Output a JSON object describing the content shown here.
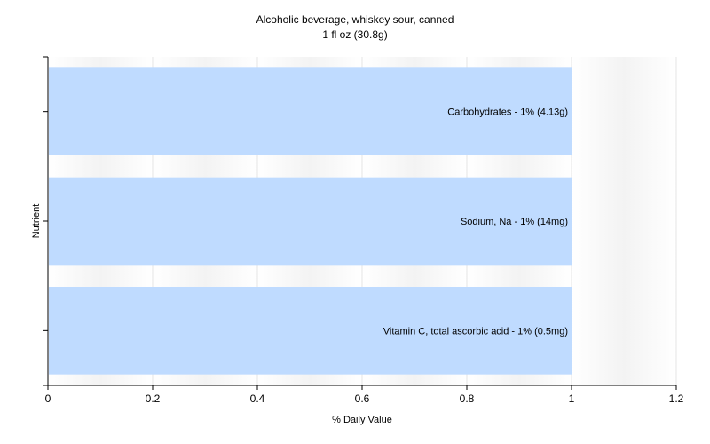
{
  "chart_data": {
    "type": "bar",
    "orientation": "horizontal",
    "title": "Alcoholic beverage, whiskey sour, canned",
    "subtitle": "1 fl oz (30.8g)",
    "xlabel": "% Daily Value",
    "ylabel": "Nutrient",
    "xlim": [
      0,
      1.2
    ],
    "xticks": [
      "0",
      "0.2",
      "0.4",
      "0.6",
      "0.8",
      "1",
      "1.2"
    ],
    "categories": [
      "Carbohydrates - 1% (4.13g)",
      "Sodium, Na - 1% (14mg)",
      "Vitamin C, total ascorbic acid - 1% (0.5mg)"
    ],
    "values": [
      1,
      1,
      1
    ],
    "bar_color": "#bfdbff",
    "grid": "vertical",
    "legend": "none"
  }
}
